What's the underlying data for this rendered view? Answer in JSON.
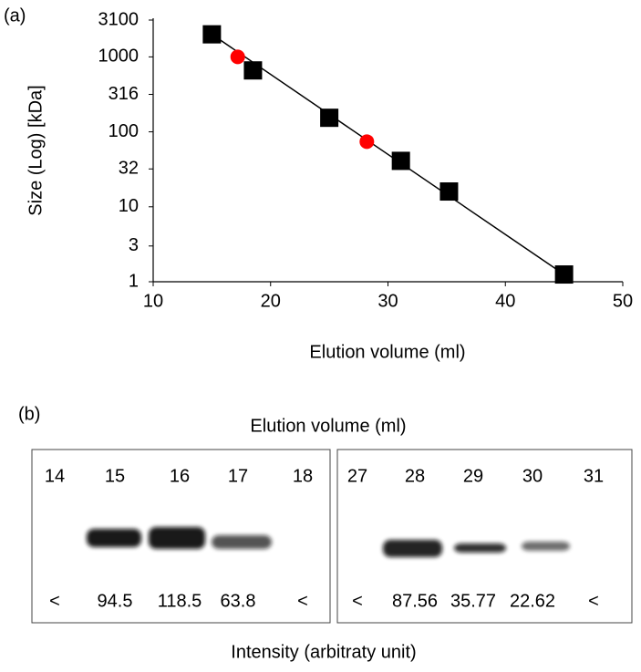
{
  "chart_data": {
    "type": "scatter",
    "panel_label": "(a)",
    "xlabel": "Elution volume (ml)",
    "ylabel": "Size (Log) [kDa]",
    "xlim": [
      10,
      50
    ],
    "xticks": [
      10,
      20,
      30,
      40,
      50
    ],
    "ylim": [
      1,
      3100
    ],
    "yticks": [
      1,
      3,
      10,
      32,
      100,
      316,
      1000,
      3100
    ],
    "ylog": true,
    "series": [
      {
        "color": "#000000",
        "marker": "square",
        "x": [
          15,
          18.5,
          25,
          31.1,
          35.2,
          45
        ],
        "values": [
          2000,
          660,
          154,
          41,
          16,
          1.25
        ]
      },
      {
        "color": "#ff0000",
        "marker": "circle",
        "x": [
          17.2,
          28.2
        ],
        "values": [
          1000,
          74
        ]
      },
      {
        "color": "#000000",
        "marker": "none",
        "x": [
          15,
          45
        ],
        "values": [
          2000,
          1.25
        ]
      }
    ]
  },
  "blot": {
    "panel_label": "(b)",
    "header": "Elution volume (ml)",
    "footer": "Intensity (arbitraty unit)",
    "panels": [
      {
        "lanes": [
          14,
          15,
          16,
          17,
          18
        ],
        "intensities": [
          "<",
          "94.5",
          "118.5",
          "63.8",
          "<"
        ]
      },
      {
        "lanes": [
          27,
          28,
          29,
          30,
          31
        ],
        "intensities": [
          "<",
          "87.56",
          "35.77",
          "22.62",
          "<"
        ]
      }
    ]
  }
}
